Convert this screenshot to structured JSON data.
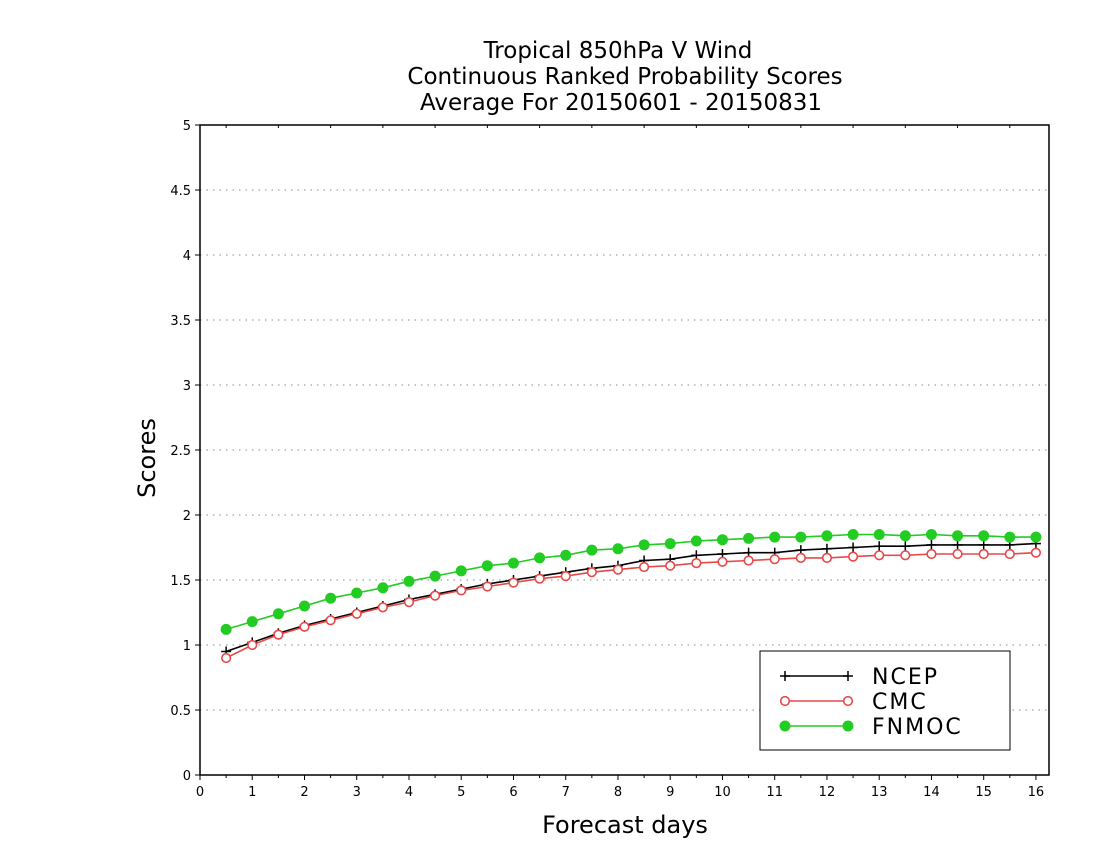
{
  "chart_data": {
    "type": "line",
    "title_lines": [
      "Tropical 850hPa V Wind",
      "Continuous Ranked Probability Scores",
      "Average For 20150601 - 20150831"
    ],
    "xlabel": "Forecast days",
    "ylabel": "Scores",
    "xlim": [
      0,
      16.25
    ],
    "ylim": [
      0,
      5
    ],
    "x_ticks": [
      0,
      1,
      2,
      3,
      4,
      5,
      6,
      7,
      8,
      9,
      10,
      11,
      12,
      13,
      14,
      15,
      16
    ],
    "y_ticks": [
      0,
      0.5,
      1,
      1.5,
      2,
      2.5,
      3,
      3.5,
      4,
      4.5,
      5
    ],
    "y_tick_labels": [
      "0",
      "0.5",
      "1",
      "1.5",
      "2",
      "2.5",
      "3",
      "3.5",
      "4",
      "4.5",
      "5"
    ],
    "grid": "horizontal-dotted",
    "legend_position": "bottom-right",
    "x": [
      0.5,
      1,
      1.5,
      2,
      2.5,
      3,
      3.5,
      4,
      4.5,
      5,
      5.5,
      6,
      6.5,
      7,
      7.5,
      8,
      8.5,
      9,
      9.5,
      10,
      10.5,
      11,
      11.5,
      12,
      12.5,
      13,
      13.5,
      14,
      14.5,
      15,
      15.5,
      16
    ],
    "series": [
      {
        "name": "NCEP",
        "color": "#000000",
        "marker": "plus",
        "values": [
          0.95,
          1.02,
          1.09,
          1.15,
          1.2,
          1.25,
          1.3,
          1.35,
          1.39,
          1.43,
          1.47,
          1.5,
          1.53,
          1.56,
          1.59,
          1.61,
          1.65,
          1.66,
          1.69,
          1.7,
          1.71,
          1.71,
          1.73,
          1.74,
          1.75,
          1.76,
          1.76,
          1.77,
          1.77,
          1.77,
          1.77,
          1.78
        ]
      },
      {
        "name": "CMC",
        "color": "#e84848",
        "marker": "open-circle",
        "values": [
          0.9,
          1.0,
          1.08,
          1.14,
          1.19,
          1.24,
          1.29,
          1.33,
          1.38,
          1.42,
          1.45,
          1.48,
          1.51,
          1.53,
          1.56,
          1.58,
          1.6,
          1.61,
          1.63,
          1.64,
          1.65,
          1.66,
          1.67,
          1.67,
          1.68,
          1.69,
          1.69,
          1.7,
          1.7,
          1.7,
          1.7,
          1.71
        ]
      },
      {
        "name": "FNMOC",
        "color": "#22cc22",
        "marker": "filled-circle",
        "values": [
          1.12,
          1.18,
          1.24,
          1.3,
          1.36,
          1.4,
          1.44,
          1.49,
          1.53,
          1.57,
          1.61,
          1.63,
          1.67,
          1.69,
          1.73,
          1.74,
          1.77,
          1.78,
          1.8,
          1.81,
          1.82,
          1.83,
          1.83,
          1.84,
          1.85,
          1.85,
          1.84,
          1.85,
          1.84,
          1.84,
          1.83,
          1.83
        ]
      }
    ]
  }
}
